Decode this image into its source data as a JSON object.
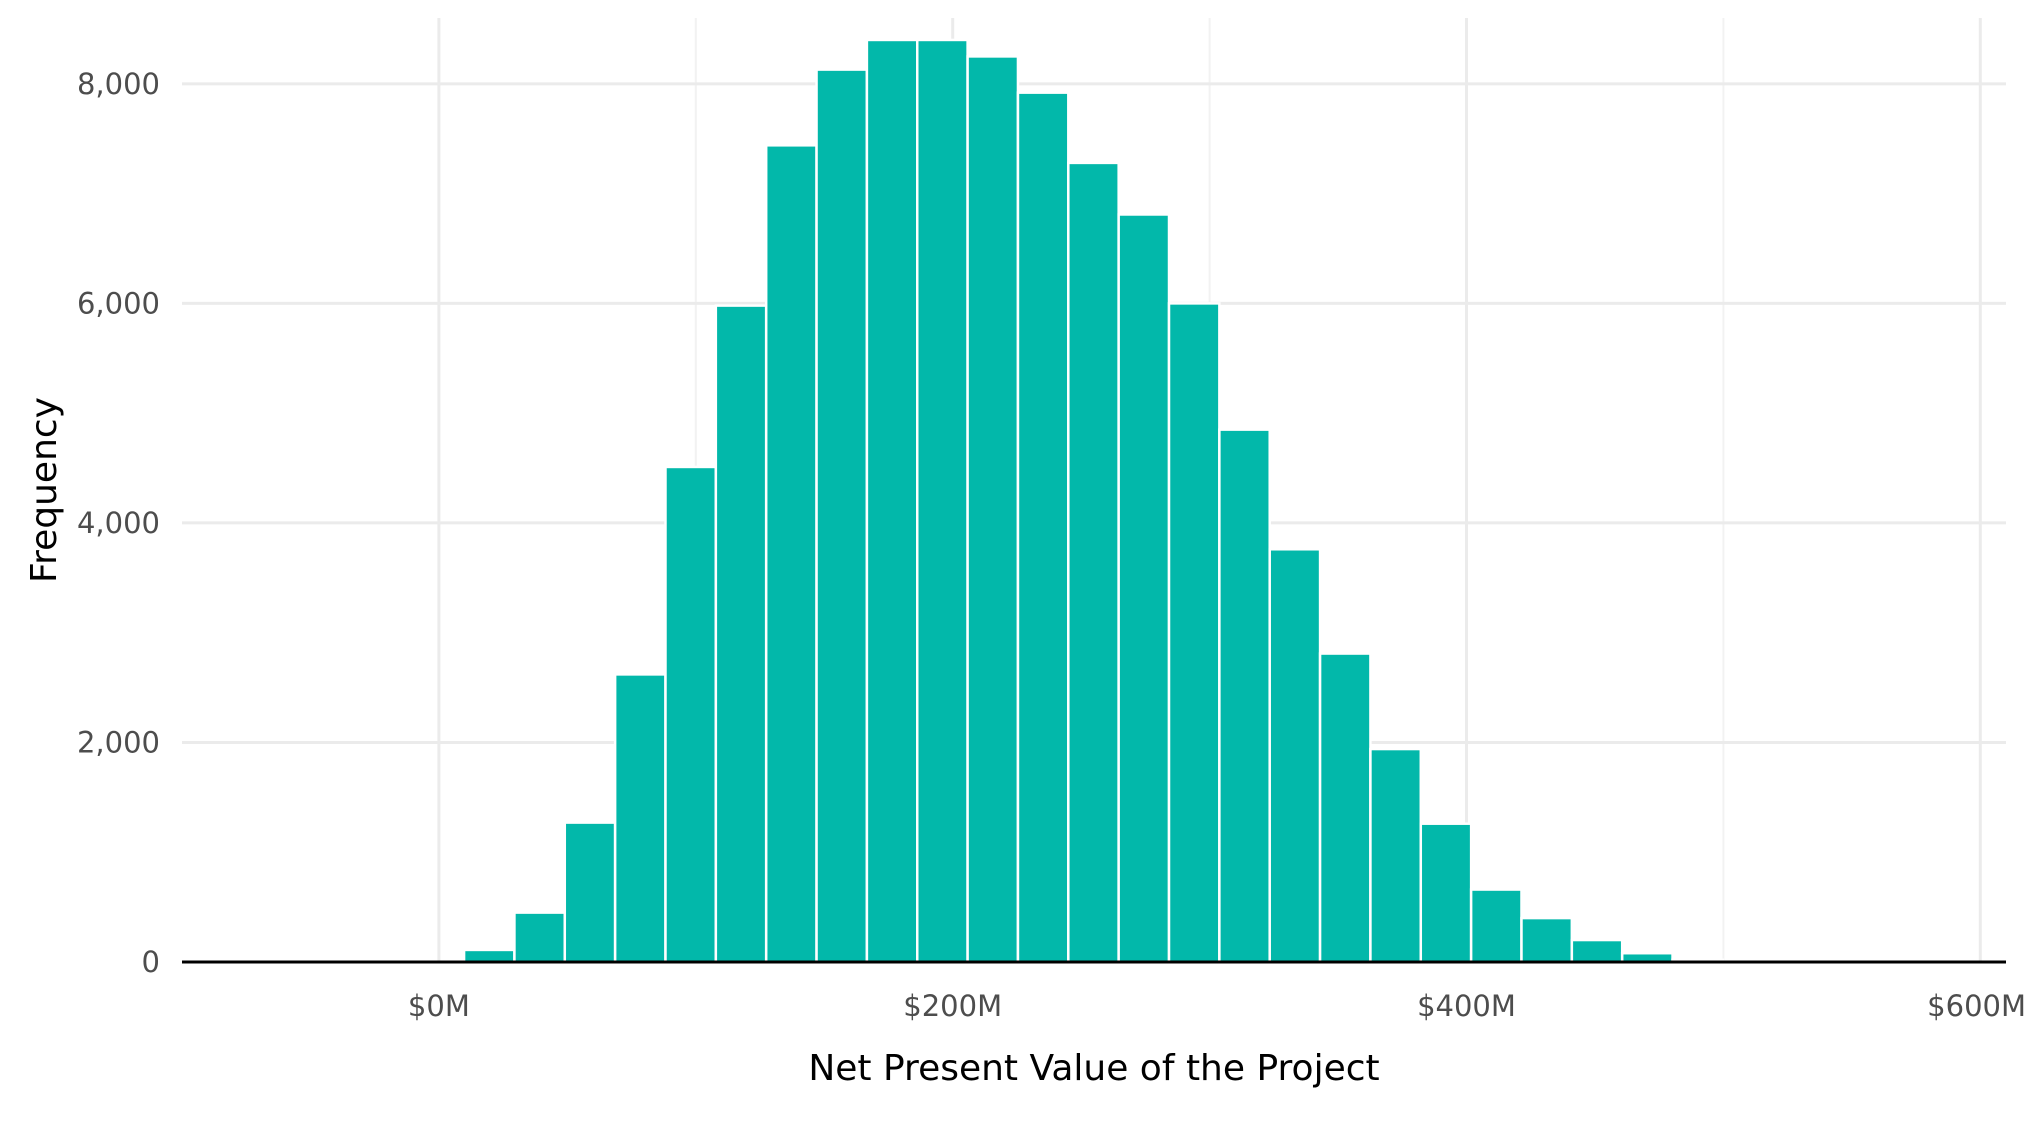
{
  "chart_data": {
    "type": "bar",
    "xlabel": "Net Present Value of the Project",
    "ylabel": "Frequency",
    "xlim": [
      -100,
      610
    ],
    "ylim": [
      0,
      8600
    ],
    "x_ticks": [
      0,
      200,
      400,
      600
    ],
    "x_tick_labels": [
      "$0M",
      "$200M",
      "$400M",
      "$600M"
    ],
    "y_ticks": [
      0,
      2000,
      4000,
      6000,
      8000
    ],
    "y_tick_labels": [
      "0",
      "2,000",
      "4,000",
      "6,000",
      "8,000"
    ],
    "bin_width": 19.6,
    "bin_start": 9.8,
    "values": [
      110,
      450,
      1270,
      2620,
      4510,
      5980,
      7440,
      8130,
      8400,
      8400,
      8250,
      7920,
      7280,
      6810,
      6000,
      4850,
      3760,
      2810,
      1940,
      1260,
      660,
      400,
      200,
      80,
      20,
      5,
      3,
      2,
      1,
      1,
      0,
      0
    ],
    "bar_color": "#02b8aa",
    "bar_edge_color": "#ffffff",
    "grid": true,
    "legend": "none"
  }
}
